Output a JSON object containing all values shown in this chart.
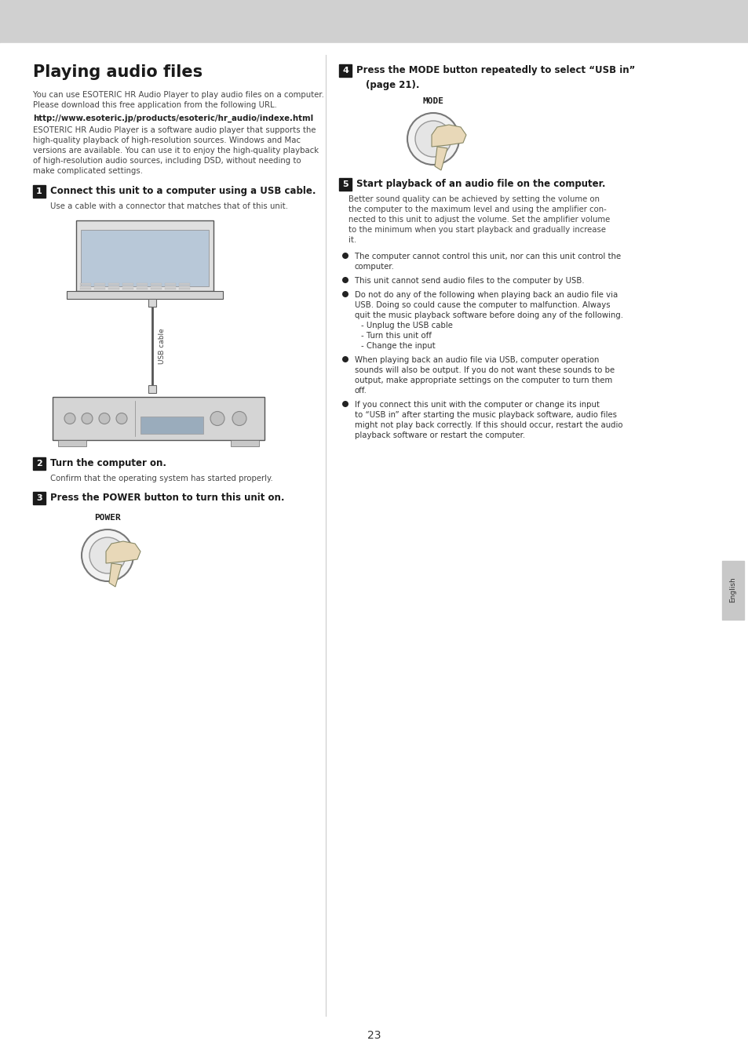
{
  "title": "Playing audio files",
  "bg_color": "#ffffff",
  "header_bg": "#d8d8d8",
  "page_number": "23",
  "body_text_size": 7.3,
  "label_text_size": 8.5,
  "title_text_size": 15,
  "intro_text": "You can use ESOTERIC HR Audio Player to play audio files on a computer.\nPlease download this free application from the following URL.",
  "url_text": "http://www.esoteric.jp/products/esoteric/hr_audio/indexe.html",
  "desc_text": "ESOTERIC HR Audio Player is a software audio player that supports the\nhigh-quality playback of high-resolution sources. Windows and Mac\nversions are available. You can use it to enjoy the high-quality playback\nof high-resolution audio sources, including DSD, without needing to\nmake complicated settings.",
  "step1_title": "Connect this unit to a computer using a USB cable.",
  "step1_desc": "Use a cable with a connector that matches that of this unit.",
  "step2_title": "Turn the computer on.",
  "step2_desc": "Confirm that the operating system has started properly.",
  "step3_title": "Press the POWER button to turn this unit on.",
  "step4_title_line1": "Press the MODE button repeatedly to select “USB in”",
  "step4_title_line2": "(page 21).",
  "step5_title": "Start playback of an audio file on the computer.",
  "step5_desc": "Better sound quality can be achieved by setting the volume on\nthe computer to the maximum level and using the amplifier con-\nnected to this unit to adjust the volume. Set the amplifier volume\nto the minimum when you start playback and gradually increase\nit.",
  "bullet1": "The computer cannot control this unit, nor can this unit control the\ncomputer.",
  "bullet2": "This unit cannot send audio files to the computer by USB.",
  "bullet3": "Do not do any of the following when playing back an audio file via\nUSB. Doing so could cause the computer to malfunction. Always\nquit the music playback software before doing any of the following.\n- Unplug the USB cable\n- Turn this unit off\n- Change the input",
  "bullet4": "When playing back an audio file via USB, computer operation\nsounds will also be output. If you do not want these sounds to be\noutput, make appropriate settings on the computer to turn them\noff.",
  "bullet5": "If you connect this unit with the computer or change its input\nto “USB in” after starting the music playback software, audio files\nmight not play back correctly. If this should occur, restart the audio\nplayback software or restart the computer.",
  "sidebar_text": "English",
  "power_label": "POWER",
  "mode_label": "MODE",
  "usb_cable_label": "USB cable"
}
